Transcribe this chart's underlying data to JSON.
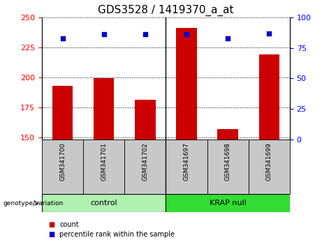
{
  "title": "GDS3528 / 1419370_a_at",
  "categories": [
    "GSM341700",
    "GSM341701",
    "GSM341702",
    "GSM341697",
    "GSM341698",
    "GSM341699"
  ],
  "bar_values": [
    193,
    199,
    181,
    241,
    157,
    219
  ],
  "scatter_values": [
    83,
    86,
    86,
    86,
    83,
    87
  ],
  "ylim_left": [
    148,
    250
  ],
  "ylim_right": [
    0,
    100
  ],
  "yticks_left": [
    150,
    175,
    200,
    225,
    250
  ],
  "yticks_right": [
    0,
    25,
    50,
    75,
    100
  ],
  "bar_color": "#cc0000",
  "scatter_color": "#0000cc",
  "xlabel_area_color": "#c8c8c8",
  "group_labels": [
    "control",
    "KRAP null"
  ],
  "group_colors": [
    "#b0f0b0",
    "#33dd33"
  ],
  "legend_items": [
    "count",
    "percentile rank within the sample"
  ],
  "legend_colors": [
    "#cc0000",
    "#0000cc"
  ],
  "bar_width": 0.5,
  "title_fontsize": 11,
  "tick_fontsize": 8,
  "label_fontsize": 7
}
